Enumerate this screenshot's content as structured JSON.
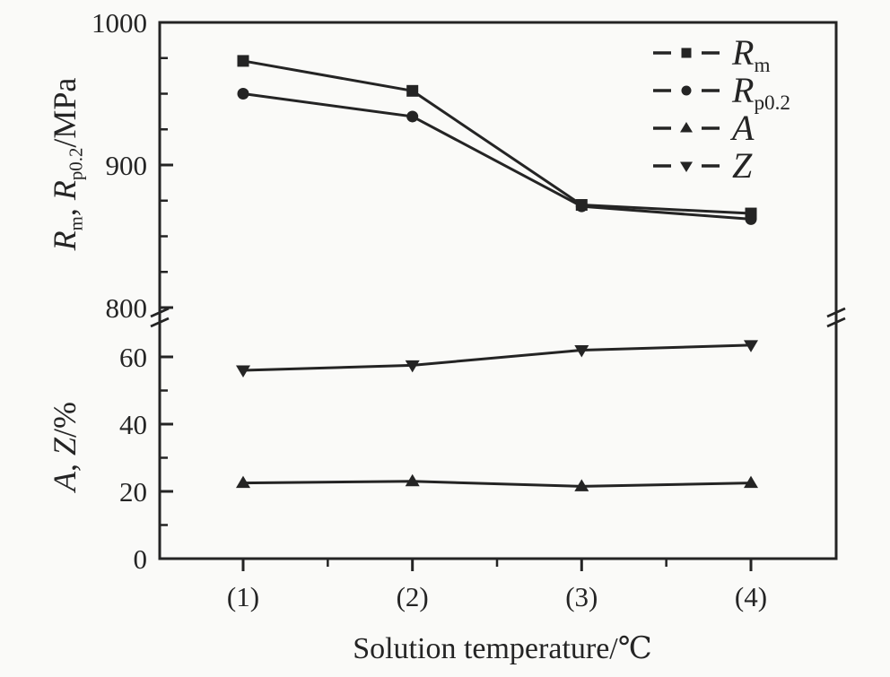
{
  "figure": {
    "background": "#fafaf8",
    "ink": "#242424"
  },
  "chart_data": {
    "type": "line",
    "title": "",
    "xlabel": "Solution temperature/℃",
    "x_categories": [
      "(1)",
      "(2)",
      "(3)",
      "(4)"
    ],
    "axis_break": true,
    "legend_position": "top-right",
    "grid": false,
    "axes": {
      "top": {
        "label": "Rm, Rp0.2/MPa",
        "ylim": [
          800,
          1000
        ],
        "major_ticks": [
          1000,
          900,
          800
        ],
        "minor_ticks": [
          975,
          950,
          925,
          875,
          850,
          825
        ]
      },
      "bottom": {
        "label": "A, Z/%",
        "ylim": [
          0,
          70
        ],
        "major_ticks": [
          60,
          40,
          20,
          0
        ],
        "minor_ticks": [
          50,
          30,
          10
        ]
      }
    },
    "series": [
      {
        "name": "Rm",
        "axis": "top",
        "marker": "square",
        "values": [
          973,
          952,
          872,
          866
        ]
      },
      {
        "name": "Rp0.2",
        "axis": "top",
        "marker": "circle",
        "values": [
          950,
          934,
          871,
          862
        ]
      },
      {
        "name": "A",
        "axis": "bottom",
        "marker": "triangle-up",
        "values": [
          22.5,
          23,
          21.5,
          22.5
        ]
      },
      {
        "name": "Z",
        "axis": "bottom",
        "marker": "triangle-down",
        "values": [
          56,
          57.5,
          62,
          63.5
        ]
      }
    ]
  },
  "labels": {
    "y_top": {
      "r1": "R",
      "s1": "m",
      "sep": ", ",
      "r2": "R",
      "s2": "p0.2",
      "unit": "/MPa"
    },
    "y_bottom": {
      "a": "A",
      "sep": ", ",
      "z": "Z",
      "unit": "/%"
    },
    "x": "Solution temperature/℃"
  },
  "legend": {
    "items": [
      {
        "main": "R",
        "sub": "m",
        "marker": "square"
      },
      {
        "main": "R",
        "sub": "p0.2",
        "marker": "circle"
      },
      {
        "main": "A",
        "sub": "",
        "marker": "triangle-up"
      },
      {
        "main": "Z",
        "sub": "",
        "marker": "triangle-down"
      }
    ]
  }
}
